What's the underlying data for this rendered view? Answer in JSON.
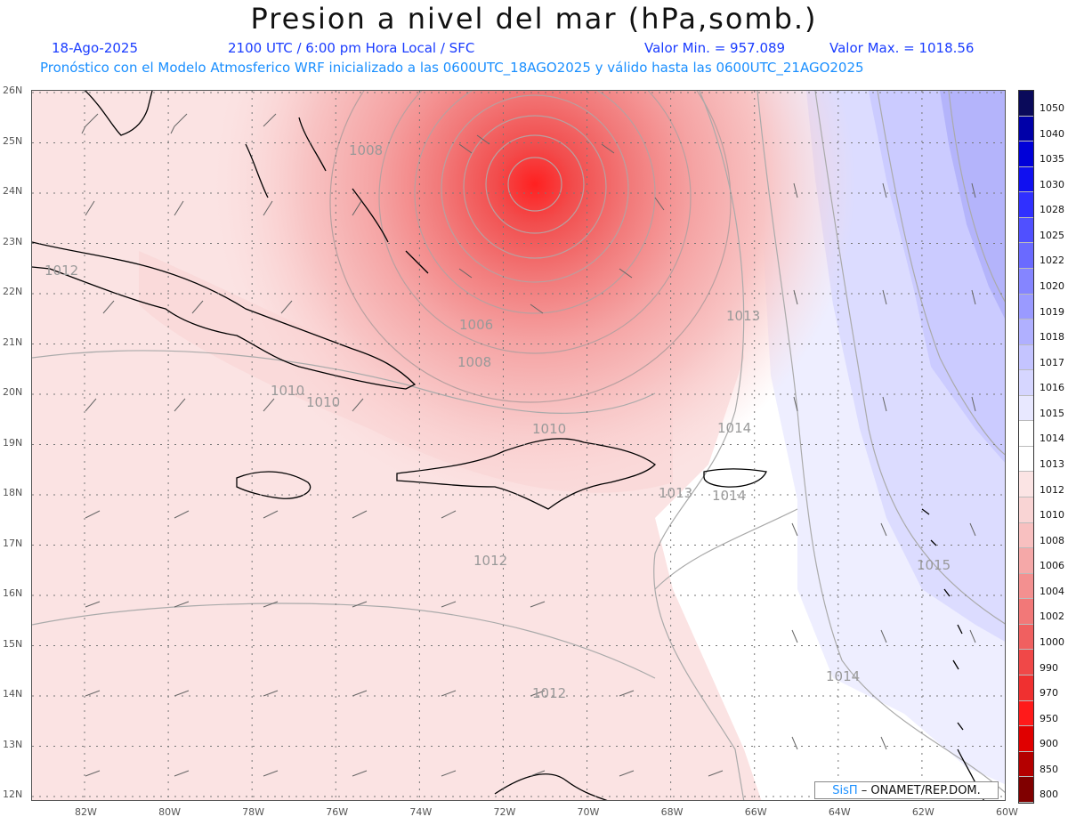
{
  "title": "Presion a nivel del mar (hPa,somb.)",
  "header": {
    "date": "18-Ago-2025",
    "time": "2100 UTC / 6:00 pm Hora Local / SFC",
    "valor_min": "Valor Min. = 957.089",
    "valor_max": "Valor Max. = 1018.56",
    "forecast": "Pronóstico con el Modelo Atmosferico WRF inicializado a las 0600UTC_18AGO2025 y válido hasta las  0600UTC_21AGO2025"
  },
  "lat_labels": [
    "26N",
    "25N",
    "24N",
    "23N",
    "22N",
    "21N",
    "20N",
    "19N",
    "18N",
    "17N",
    "16N",
    "15N",
    "14N",
    "13N",
    "12N"
  ],
  "lon_labels": [
    "82W",
    "80W",
    "78W",
    "76W",
    "74W",
    "72W",
    "70W",
    "68W",
    "66W",
    "64W",
    "62W",
    "60W"
  ],
  "contour_labels": [
    {
      "text": "1008",
      "id": "c1"
    },
    {
      "text": "1012",
      "id": "c2"
    },
    {
      "text": "1013",
      "id": "c3"
    },
    {
      "text": "1006",
      "id": "c4"
    },
    {
      "text": "1008",
      "id": "c5"
    },
    {
      "text": "1010",
      "id": "c6"
    },
    {
      "text": "1010",
      "id": "c7"
    },
    {
      "text": "1010",
      "id": "c8"
    },
    {
      "text": "1014",
      "id": "c9"
    },
    {
      "text": "1013",
      "id": "c10"
    },
    {
      "text": "1014",
      "id": "c11"
    },
    {
      "text": "1012",
      "id": "c12"
    },
    {
      "text": "1015",
      "id": "c13"
    },
    {
      "text": "1014",
      "id": "c14"
    },
    {
      "text": "1012",
      "id": "c15"
    }
  ],
  "colorbar": {
    "levels": [
      "1050",
      "1040",
      "1035",
      "1030",
      "1028",
      "1025",
      "1022",
      "1020",
      "1019",
      "1018",
      "1017",
      "1016",
      "1015",
      "1014",
      "1013",
      "1012",
      "1010",
      "1008",
      "1006",
      "1004",
      "1002",
      "1000",
      "990",
      "970",
      "950",
      "900",
      "850",
      "800"
    ],
    "colors": [
      "#0a0a5a",
      "#0000a8",
      "#0000d8",
      "#1010f0",
      "#3030ff",
      "#5050ff",
      "#6a6aff",
      "#8585ff",
      "#9a9aff",
      "#b0b0ff",
      "#c4c4ff",
      "#d6d6ff",
      "#e8e8ff",
      "#ffffff",
      "#ffffff",
      "#fbe4e4",
      "#f9d4d4",
      "#f8c0c0",
      "#f5a8a8",
      "#f39090",
      "#f27878",
      "#f06060",
      "#f04848",
      "#f03030",
      "#ff1a1a",
      "#e00000",
      "#b40000",
      "#800000"
    ]
  },
  "credit": {
    "brand": "SisΠ",
    "rest": " – ONAMET/REP.DOM."
  }
}
